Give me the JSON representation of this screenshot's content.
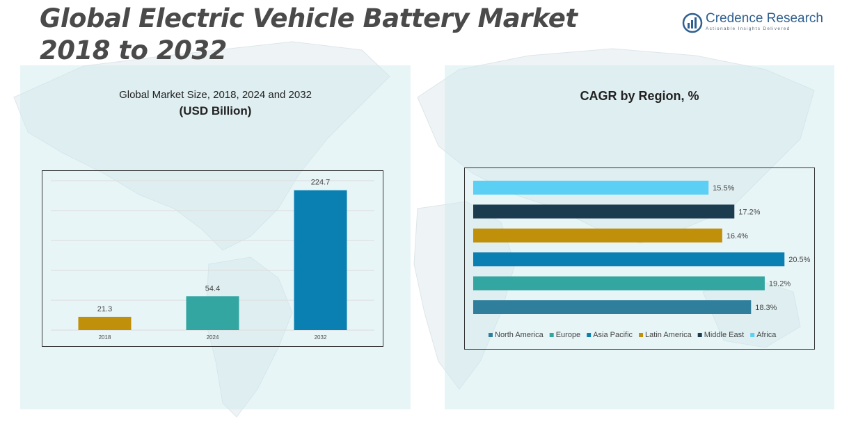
{
  "page": {
    "title_line1": "Global Electric Vehicle Battery Market",
    "title_line2": "2018 to 2032"
  },
  "logo": {
    "name": "Credence Research",
    "tagline": "Actionable Insights Delivered",
    "icon": "bar-chart-globe-icon",
    "color": "#2f5f8f"
  },
  "chart_data": [
    {
      "type": "bar",
      "title": "Global Market Size, 2018, 2024 and 2032",
      "subtitle": "(USD Billion)",
      "categories": [
        "2018",
        "2024",
        "2032"
      ],
      "values": [
        21.3,
        54.4,
        224.7
      ],
      "data_labels": [
        "21.3",
        "54.4",
        "224.7"
      ],
      "colors": [
        "#C0900A",
        "#33A6A2",
        "#0A7FB2"
      ],
      "ylim": [
        0,
        240
      ],
      "grid": true,
      "legend": "none"
    },
    {
      "type": "bar",
      "orientation": "horizontal",
      "title": "CAGR by Region, %",
      "categories": [
        "Africa",
        "Middle East",
        "Latin America",
        "Asia Pacific",
        "Europe",
        "North America"
      ],
      "values": [
        15.5,
        17.2,
        16.4,
        20.5,
        19.2,
        18.3
      ],
      "data_labels": [
        "15.5%",
        "17.2%",
        "16.4%",
        "20.5%",
        "19.2%",
        "18.3%"
      ],
      "colors": [
        "#5BCFF4",
        "#1B3B4F",
        "#C0900A",
        "#0A7FB2",
        "#33A6A2",
        "#2F7F9C"
      ],
      "xlim": [
        0,
        22
      ],
      "grid": false,
      "legend": "bottom",
      "legend_order": [
        "North America",
        "Europe",
        "Asia Pacific",
        "Latin America",
        "Middle East",
        "Africa"
      ]
    }
  ]
}
